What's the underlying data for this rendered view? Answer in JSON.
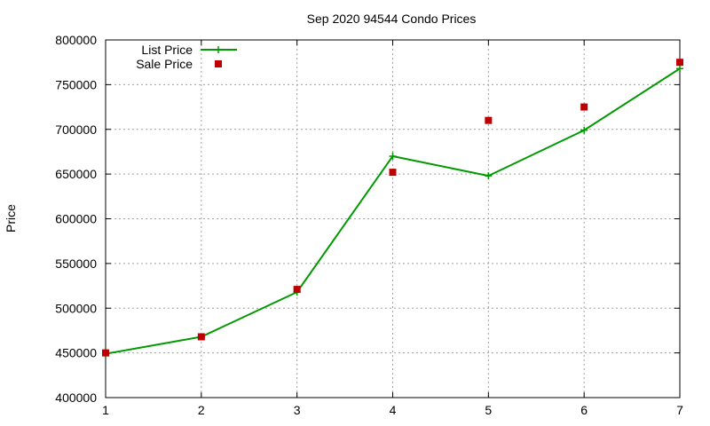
{
  "chart_data": {
    "type": "line",
    "title": "Sep 2020 94544 Condo Prices",
    "xlabel": "",
    "ylabel": "Price",
    "x": [
      1,
      2,
      3,
      4,
      5,
      6,
      7
    ],
    "xlim": [
      1,
      7
    ],
    "ylim": [
      400000,
      800000
    ],
    "x_ticks": [
      "1",
      "2",
      "3",
      "4",
      "5",
      "6",
      "7"
    ],
    "y_ticks": [
      "400000",
      "450000",
      "500000",
      "550000",
      "600000",
      "650000",
      "700000",
      "750000",
      "800000"
    ],
    "grid": true,
    "legend_position": "top-left",
    "series": [
      {
        "name": "List Price",
        "style": "line-with-plus-markers",
        "color": "#009900",
        "values": [
          449000,
          468000,
          518000,
          670000,
          648000,
          699000,
          768000
        ]
      },
      {
        "name": "Sale Price",
        "style": "square-markers",
        "color": "#c00000",
        "values": [
          450000,
          468000,
          521000,
          652000,
          710000,
          725000,
          775000
        ]
      }
    ]
  }
}
